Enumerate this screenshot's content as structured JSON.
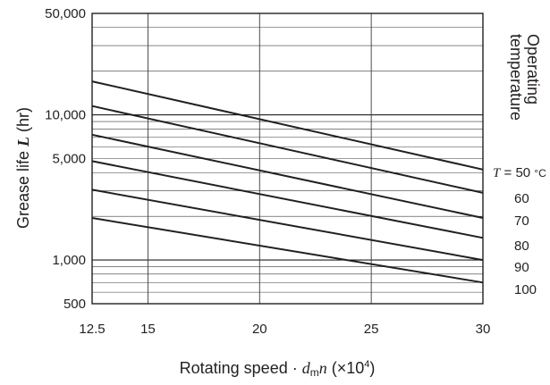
{
  "chart_data": {
    "type": "line",
    "ylabel": {
      "prefix": "Grease life ",
      "symbol": "L",
      "unit": " (hr)"
    },
    "xlabel": {
      "prefix": "Rotating speed · ",
      "symbol": "d",
      "subscript": "m",
      "symbol2": "n",
      "unit_open": " (×10",
      "unit_exp": "4",
      "unit_close": ")"
    },
    "series_group_title": [
      "Operating",
      "temperature"
    ],
    "x_ticks": [
      "12.5",
      "15",
      "20",
      "25",
      "30"
    ],
    "x_tick_values": [
      12.5,
      15,
      20,
      25,
      30
    ],
    "y_ticks": [
      "50,000",
      "10,000",
      "5,000",
      "1,000",
      "500"
    ],
    "y_tick_values": [
      50000,
      10000,
      5000,
      1000,
      500
    ],
    "xlim": [
      12.5,
      30
    ],
    "ylim": [
      500,
      50000
    ],
    "yscale": "log",
    "grid": true,
    "temperature_prefix": "T",
    "temperature_unit": "°C",
    "series": [
      {
        "name": "50",
        "x": [
          12.5,
          30
        ],
        "y": [
          17000,
          4200
        ]
      },
      {
        "name": "60",
        "x": [
          12.5,
          30
        ],
        "y": [
          11500,
          2900
        ]
      },
      {
        "name": "70",
        "x": [
          12.5,
          30
        ],
        "y": [
          7300,
          1950
        ]
      },
      {
        "name": "80",
        "x": [
          12.5,
          30
        ],
        "y": [
          4800,
          1420
        ]
      },
      {
        "name": "90",
        "x": [
          12.5,
          30
        ],
        "y": [
          3050,
          1000
        ]
      },
      {
        "name": "100",
        "x": [
          12.5,
          30
        ],
        "y": [
          1950,
          700
        ]
      }
    ],
    "colors": {
      "ink": "#231f20",
      "grid": "#3a3a3a",
      "background": "#ffffff"
    }
  }
}
